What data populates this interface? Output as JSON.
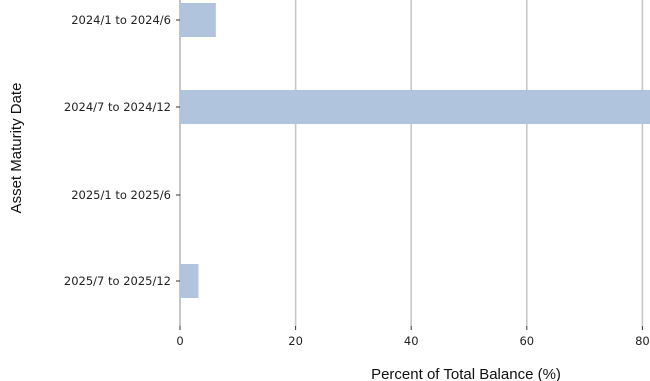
{
  "chart_data": {
    "type": "bar",
    "orientation": "horizontal",
    "categories": [
      "2024/1 to 2024/6",
      "2024/7 to 2024/12",
      "2025/1 to 2025/6",
      "2025/7 to 2025/12"
    ],
    "values": [
      6.2,
      82.0,
      0,
      3.2
    ],
    "xlabel": "Percent of Total Balance (%)",
    "ylabel": "Asset Maturity Date",
    "x_ticks": [
      "0",
      "20",
      "40",
      "60",
      "80"
    ],
    "xlim": [
      0,
      81.5
    ],
    "grid": "vertical",
    "bar_color": "#b0c4de",
    "grid_color": "#c8c8c8"
  }
}
